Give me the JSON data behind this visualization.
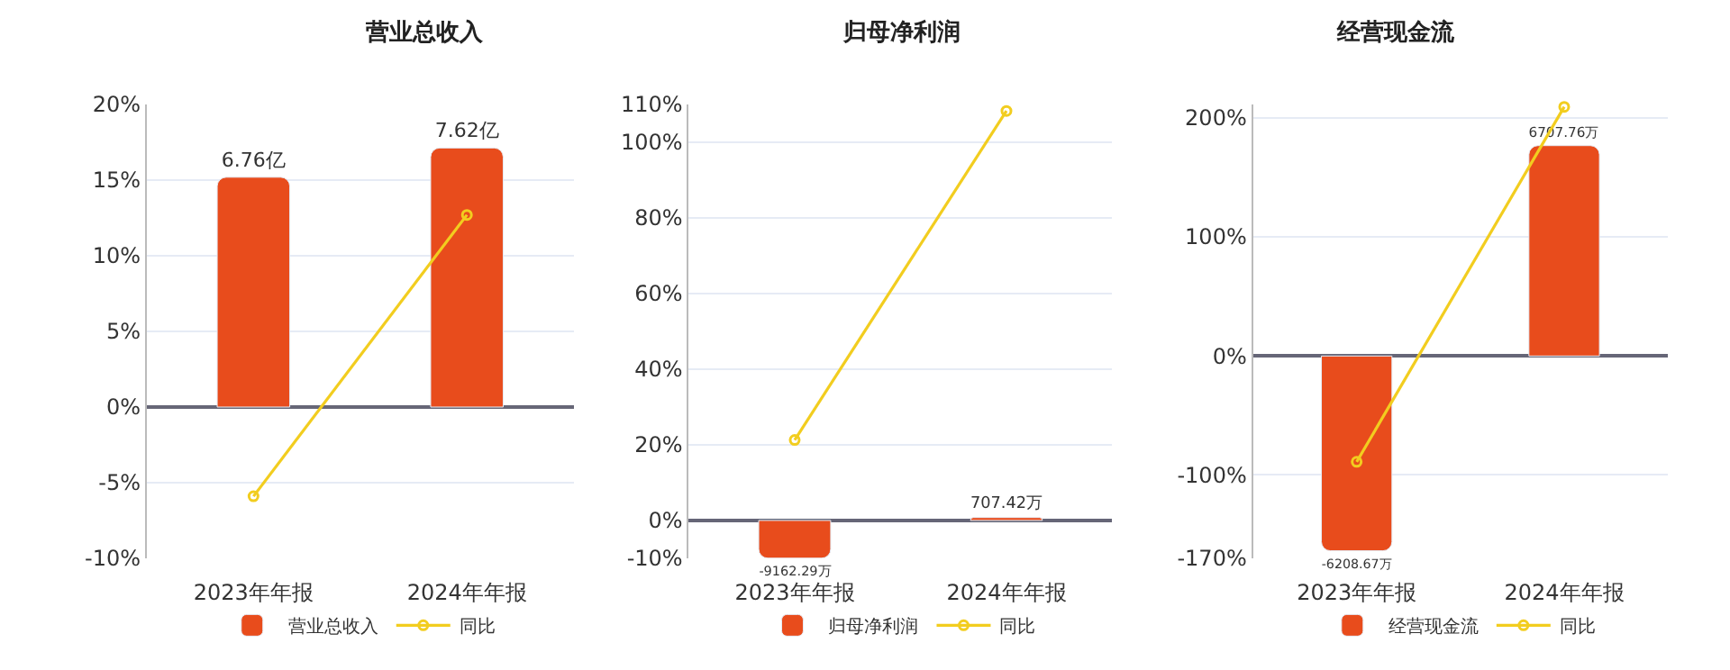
{
  "chart_data": [
    {
      "type": "bar",
      "title": "营业总收入",
      "categories": [
        "2023年年报",
        "2024年年报"
      ],
      "series": [
        {
          "name": "营业总收入",
          "color": "#e84c1c",
          "values": [
            6.76,
            7.62
          ],
          "value_labels": [
            "6.76亿",
            "7.62亿"
          ],
          "axis": "y2"
        },
        {
          "name": "同比",
          "type": "line",
          "color": "#f2cd1f",
          "values": [
            -5.9,
            12.7
          ],
          "marker": "circle"
        }
      ],
      "ylim": [
        -10,
        20
      ],
      "yticks": [
        {
          "value": -10,
          "label": "-10%"
        },
        {
          "value": -5,
          "label": "-5%"
        },
        {
          "value": 0,
          "label": "0%"
        },
        {
          "value": 5,
          "label": "5%"
        },
        {
          "value": 10,
          "label": "10%"
        },
        {
          "value": 15,
          "label": "15%"
        },
        {
          "value": 20,
          "label": "20%"
        }
      ],
      "y2lim": [
        -4.45,
        8.9
      ],
      "grid": "y",
      "legend": "bottom",
      "tick_labels": [
        "x",
        "y"
      ]
    },
    {
      "type": "bar",
      "title": "归母净利润",
      "categories": [
        "2023年年报",
        "2024年年报"
      ],
      "series": [
        {
          "name": "归母净利润",
          "color": "#e84c1c",
          "values": [
            -9162.29,
            707.42
          ],
          "value_labels": [
            "-9162.29万",
            "707.42万"
          ],
          "axis": "y2"
        },
        {
          "name": "同比",
          "type": "line",
          "color": "#f2cd1f",
          "values": [
            21.3,
            108.3
          ],
          "marker": "circle"
        }
      ],
      "ylim": [
        -10,
        110
      ],
      "yticks": [
        {
          "value": -10,
          "label": "-10%"
        },
        {
          "value": 0,
          "label": "0%"
        },
        {
          "value": 20,
          "label": "20%"
        },
        {
          "value": 40,
          "label": "40%"
        },
        {
          "value": 60,
          "label": "60%"
        },
        {
          "value": 80,
          "label": "80%"
        },
        {
          "value": 100,
          "label": "100%"
        },
        {
          "value": 110,
          "label": "110%"
        }
      ],
      "y2lim": [
        -9200,
        101000
      ],
      "grid": "y",
      "legend": "bottom",
      "tick_labels": [
        "x",
        "y"
      ]
    },
    {
      "type": "bar",
      "title": "经营现金流",
      "categories": [
        "2023年年报",
        "2024年年报"
      ],
      "series": [
        {
          "name": "经营现金流",
          "color": "#e84c1c",
          "values": [
            -6208.67,
            6707.76
          ],
          "value_labels": [
            "-6208.67万",
            "6707.76万"
          ],
          "axis": "y2"
        },
        {
          "name": "同比",
          "type": "line",
          "color": "#f2cd1f",
          "values": [
            -89,
            209
          ],
          "marker": "circle"
        }
      ],
      "ylim": [
        -170,
        211
      ],
      "yticks": [
        {
          "value": -170,
          "label": "-170%"
        },
        {
          "value": -100,
          "label": "-100%"
        },
        {
          "value": 0,
          "label": "0%"
        },
        {
          "value": 100,
          "label": "100%"
        },
        {
          "value": 200,
          "label": "200%"
        }
      ],
      "y2lim": [
        -6450,
        8020
      ],
      "grid": "y",
      "legend": "bottom",
      "tick_labels": [
        "x",
        "y"
      ]
    }
  ]
}
